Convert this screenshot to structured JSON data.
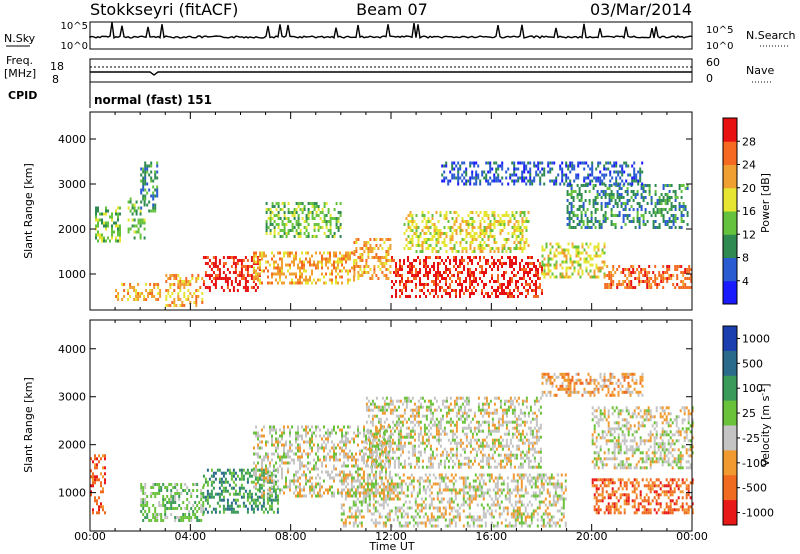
{
  "header": {
    "radar": "Stokkseyri (fitACF)",
    "beam": "Beam 07",
    "date": "03/Mar/2014"
  },
  "status_panels": {
    "noise": {
      "left_label": "N.Sky",
      "left_ticks": [
        "10^5",
        "10^0"
      ],
      "right_label": "N.Search",
      "right_ticks": [
        "10^5",
        "10^0"
      ]
    },
    "frequency": {
      "left_label_1": "Freq.",
      "left_label_2": "[MHz]",
      "left_ticks": [
        "18",
        "8"
      ],
      "right_label": "Nave",
      "right_ticks": [
        "60",
        "0"
      ]
    },
    "cpid": {
      "label": "CPID",
      "value": "normal (fast) 151"
    }
  },
  "chart_data": [
    {
      "type": "heatmap",
      "name": "power",
      "ylabel": "Slant Range [km]",
      "yticks": [
        "1000",
        "2000",
        "3000",
        "4000"
      ],
      "ylim": [
        200,
        4600
      ],
      "colorbar": {
        "label": "Power [dB]",
        "ticks": [
          "4",
          "8",
          "12",
          "16",
          "20",
          "24",
          "28"
        ],
        "range": [
          0,
          32
        ],
        "colors": [
          "#1a1aff",
          "#2a5bd0",
          "#2f8a52",
          "#64c23c",
          "#e6e632",
          "#f0a030",
          "#f56a20",
          "#e81010"
        ]
      },
      "echo_regions": [
        {
          "t": [
            2.0,
            2.7
          ],
          "r": [
            2400,
            3500
          ],
          "level": 2
        },
        {
          "t": [
            0.2,
            1.2
          ],
          "r": [
            1700,
            2500
          ],
          "level": 3
        },
        {
          "t": [
            1.5,
            2.2
          ],
          "r": [
            1800,
            2700
          ],
          "level": 3
        },
        {
          "t": [
            1.0,
            2.8
          ],
          "r": [
            400,
            800
          ],
          "level": 5
        },
        {
          "t": [
            3.0,
            4.5
          ],
          "r": [
            300,
            1000
          ],
          "level": 5
        },
        {
          "t": [
            4.5,
            6.8
          ],
          "r": [
            600,
            1400
          ],
          "level": 7
        },
        {
          "t": [
            6.5,
            10.5
          ],
          "r": [
            800,
            1500
          ],
          "level": 5
        },
        {
          "t": [
            7.0,
            10.0
          ],
          "r": [
            1800,
            2600
          ],
          "level": 3
        },
        {
          "t": [
            10.5,
            12.0
          ],
          "r": [
            900,
            1800
          ],
          "level": 5
        },
        {
          "t": [
            12.0,
            18.0
          ],
          "r": [
            500,
            1400
          ],
          "level": 7
        },
        {
          "t": [
            12.5,
            17.5
          ],
          "r": [
            1500,
            2400
          ],
          "level": 4
        },
        {
          "t": [
            18.0,
            20.5
          ],
          "r": [
            900,
            1700
          ],
          "level": 4
        },
        {
          "t": [
            20.5,
            24.0
          ],
          "r": [
            700,
            1200
          ],
          "level": 6
        },
        {
          "t": [
            19.0,
            23.8
          ],
          "r": [
            2000,
            3000
          ],
          "level": 2
        },
        {
          "t": [
            14.0,
            22.0
          ],
          "r": [
            3000,
            3500
          ],
          "level": 1
        }
      ]
    },
    {
      "type": "heatmap",
      "name": "velocity",
      "ylabel": "Slant Range [km]",
      "xlabel": "Time UT",
      "xticks": [
        "00:00",
        "04:00",
        "08:00",
        "12:00",
        "16:00",
        "20:00",
        "00:00"
      ],
      "xrange_hours": [
        0,
        24
      ],
      "yticks": [
        "1000",
        "2000",
        "3000",
        "4000"
      ],
      "ylim": [
        200,
        4600
      ],
      "colorbar": {
        "label": "Velocity [m s^-1]",
        "ticks": [
          "1000",
          "500",
          "100",
          "25",
          "-25",
          "-100",
          "-500",
          "-1000"
        ],
        "colors": [
          "#1c3fb0",
          "#2a6a8a",
          "#3a9a5a",
          "#6ac23a",
          "#c4c4c4",
          "#f09a30",
          "#f06a20",
          "#e81818"
        ]
      },
      "echo_regions": [
        {
          "t": [
            0.0,
            0.6
          ],
          "r": [
            600,
            1800
          ],
          "level": 6
        },
        {
          "t": [
            2.0,
            4.5
          ],
          "r": [
            400,
            1200
          ],
          "level": 3
        },
        {
          "t": [
            4.5,
            7.5
          ],
          "r": [
            600,
            1500
          ],
          "level": 2
        },
        {
          "t": [
            6.5,
            12.0
          ],
          "r": [
            900,
            2400
          ],
          "level": 4
        },
        {
          "t": [
            10.0,
            19.0
          ],
          "r": [
            300,
            1400
          ],
          "level": 4
        },
        {
          "t": [
            11.0,
            18.0
          ],
          "r": [
            1500,
            3000
          ],
          "level": 4
        },
        {
          "t": [
            20.0,
            24.0
          ],
          "r": [
            600,
            1300
          ],
          "level": 6
        },
        {
          "t": [
            20.0,
            24.0
          ],
          "r": [
            1500,
            2800
          ],
          "level": 4
        },
        {
          "t": [
            18.0,
            22.0
          ],
          "r": [
            3000,
            3500
          ],
          "level": 5
        }
      ]
    }
  ]
}
